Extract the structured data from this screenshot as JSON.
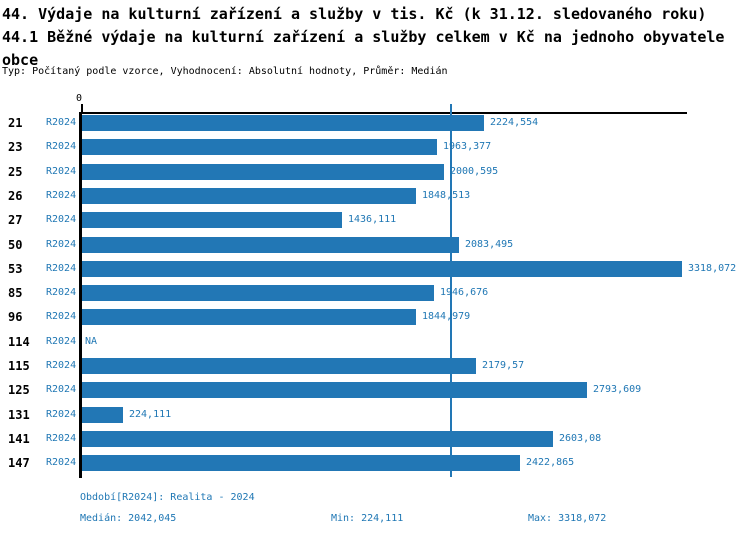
{
  "header": {
    "title_line1": "44. Výdaje na kulturní zařízení a služby v tis. Kč (k 31.12. sledovaného roku)",
    "title_line2": "44.1 Běžné výdaje na kulturní zařízení a služby celkem v Kč na jednoho obyvatele obce",
    "meta_line": "Typ: Počítaný podle vzorce, Vyhodnocení: Absolutní hodnoty, Průměr: Medián"
  },
  "colors": {
    "bar": "#2277b5",
    "blue_text": "#1f77b4",
    "axis": "#000000"
  },
  "chart_data": {
    "type": "bar",
    "orientation": "horizontal",
    "title": "44.1 Běžné výdaje na kulturní zařízení a služby celkem v Kč na jednoho obyvatele obce",
    "x_axis": {
      "zero_label": "0",
      "xlim": [
        0,
        3350
      ],
      "grid": false
    },
    "series_label": "R2024",
    "na_label": "NA",
    "categories": [
      "21",
      "23",
      "25",
      "26",
      "27",
      "50",
      "53",
      "85",
      "96",
      "114",
      "115",
      "125",
      "131",
      "141",
      "147"
    ],
    "rows": [
      {
        "id": "21",
        "period": "R2024",
        "value": 2224.554,
        "label": "2224,554"
      },
      {
        "id": "23",
        "period": "R2024",
        "value": 1963.377,
        "label": "1963,377"
      },
      {
        "id": "25",
        "period": "R2024",
        "value": 2000.595,
        "label": "2000,595"
      },
      {
        "id": "26",
        "period": "R2024",
        "value": 1848.513,
        "label": "1848,513"
      },
      {
        "id": "27",
        "period": "R2024",
        "value": 1436.111,
        "label": "1436,111"
      },
      {
        "id": "50",
        "period": "R2024",
        "value": 2083.495,
        "label": "2083,495"
      },
      {
        "id": "53",
        "period": "R2024",
        "value": 3318.072,
        "label": "3318,072"
      },
      {
        "id": "85",
        "period": "R2024",
        "value": 1946.676,
        "label": "1946,676"
      },
      {
        "id": "96",
        "period": "R2024",
        "value": 1844.979,
        "label": "1844,979"
      },
      {
        "id": "114",
        "period": "R2024",
        "value": null,
        "label": "NA"
      },
      {
        "id": "115",
        "period": "R2024",
        "value": 2179.57,
        "label": "2179,57"
      },
      {
        "id": "125",
        "period": "R2024",
        "value": 2793.609,
        "label": "2793,609"
      },
      {
        "id": "131",
        "period": "R2024",
        "value": 224.111,
        "label": "224,111"
      },
      {
        "id": "141",
        "period": "R2024",
        "value": 2603.08,
        "label": "2603,08"
      },
      {
        "id": "147",
        "period": "R2024",
        "value": 2422.865,
        "label": "2422,865"
      }
    ],
    "median_value": 2042.045,
    "min_value": 224.111,
    "max_value": 3318.072
  },
  "footer": {
    "period": "Období[R2024]: Realita - 2024",
    "median": "Medián: 2042,045",
    "min": "Min: 224,111",
    "max": "Max: 3318,072"
  }
}
